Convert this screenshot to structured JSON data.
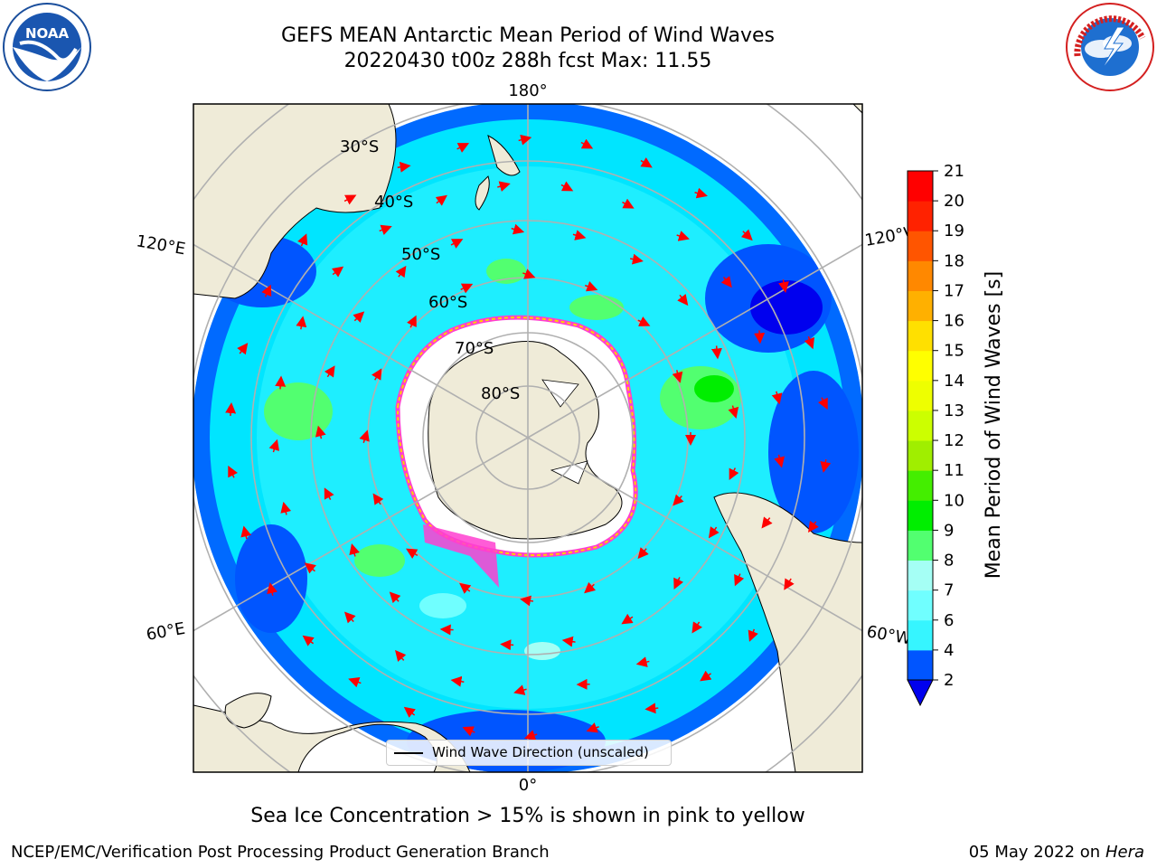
{
  "header": {
    "title_line1": "GEFS MEAN Antarctic Mean Period of Wind Waves",
    "title_line2": "20220430 t00z 288h fcst   Max: 11.55"
  },
  "logos": {
    "left": "noaa-logo",
    "right": "nws-logo"
  },
  "map": {
    "projection": "south-polar-stereographic",
    "longitude_labels": [
      "180°",
      "120°E",
      "120°W",
      "60°E",
      "60°W",
      "0°"
    ],
    "latitude_labels": [
      "30°S",
      "40°S",
      "50°S",
      "60°S",
      "70°S",
      "80°S"
    ],
    "legend_label": "Wind Wave Direction (unscaled)",
    "colors": {
      "land": "#efebd8",
      "ice_white": "#ffffff",
      "ice_edge_pink": "#ff3fd0",
      "ice_edge_yellow": "#ffd000",
      "arrow": "#ff0000",
      "grid": "#b0b0b0"
    }
  },
  "colorbar": {
    "label": "Mean Period of Wind Waves [s]",
    "tick_labels": [
      "2",
      "4",
      "6",
      "7",
      "8",
      "9",
      "10",
      "11",
      "12",
      "13",
      "14",
      "15",
      "16",
      "17",
      "18",
      "19",
      "20",
      "21"
    ],
    "extend": "min",
    "colors": [
      "#0055ff",
      "#00e5ff",
      "#36f5ff",
      "#70ffff",
      "#a5fff5",
      "#52ff70",
      "#00ee00",
      "#44ee00",
      "#a0ee00",
      "#ccff00",
      "#eeff00",
      "#ffff00",
      "#ffe000",
      "#ffb000",
      "#ff8800",
      "#ff5500",
      "#ff2200",
      "#ff0000"
    ],
    "extend_color": "#0000ee"
  },
  "footer": {
    "sea_ice_note": "Sea Ice Concentration > 15% is shown in pink to yellow",
    "left": "NCEP/EMC/Verification Post Processing Product Generation Branch",
    "right_date": "05 May 2022 on",
    "right_machine": "Hera"
  }
}
